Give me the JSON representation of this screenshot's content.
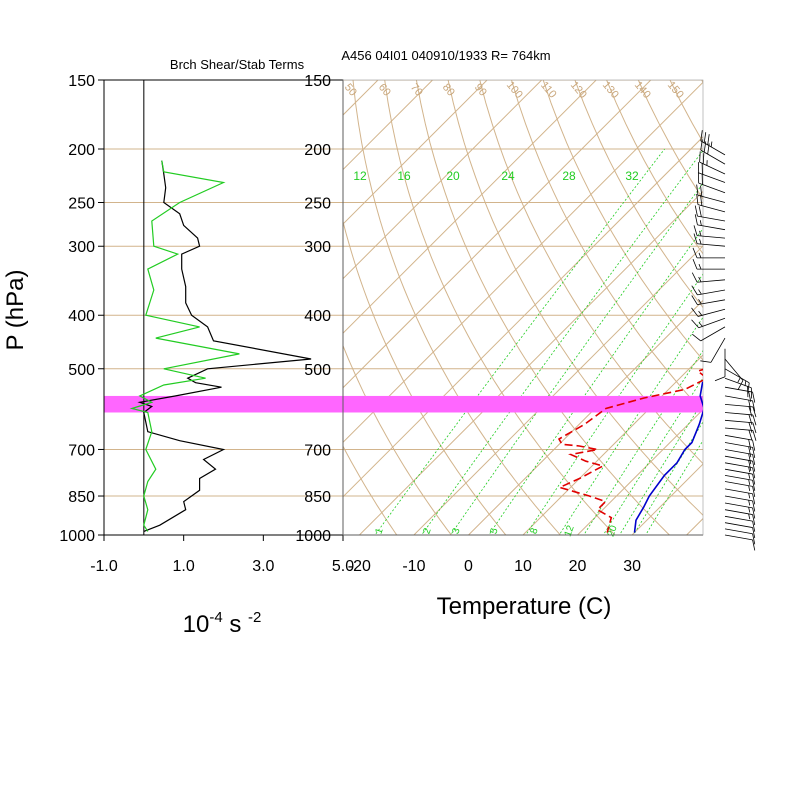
{
  "header": {
    "left_title": "Brch Shear/Stab Terms",
    "right_title": "A456 04I01 040910/1933 R= 764km"
  },
  "colors": {
    "grid": "#d2b48c",
    "brown_labels": "#c9a77c",
    "mixing_ratio": "#22cc22",
    "temperature": "#e00000",
    "dewpoint_line": "#0000cc",
    "highlight_band": "#ff66ff",
    "shear_black": "#000000",
    "stab_green": "#22cc22"
  },
  "chart_data": [
    {
      "type": "line",
      "name": "left-panel",
      "ylabel": "P (hPa)",
      "xlabel": "10-4 s -2",
      "xlabel_parts": {
        "base": "10",
        "exp1": "-4",
        "unit": " s ",
        "exp2": "-2"
      },
      "x_ticks": [
        "-1.0",
        "1.0",
        "3.0",
        "5.0"
      ],
      "x_tick_values": [
        -1,
        1,
        3,
        5
      ],
      "xlim": [
        -1,
        5
      ],
      "ylim": [
        1000,
        150
      ],
      "y_scale": "log",
      "y_ticks": [
        "150",
        "200",
        "250",
        "300",
        "400",
        "500",
        "700",
        "850",
        "1000"
      ],
      "y_tick_values": [
        150,
        200,
        250,
        300,
        400,
        500,
        700,
        850,
        1000
      ],
      "highlight_band": [
        560,
        600
      ],
      "series": [
        {
          "color": "#000000",
          "points": [
            [
              0.45,
              210
            ],
            [
              0.5,
              222
            ],
            [
              0.55,
              235
            ],
            [
              0.5,
              250
            ],
            [
              0.9,
              262
            ],
            [
              1.0,
              275
            ],
            [
              1.35,
              290
            ],
            [
              1.4,
              300
            ],
            [
              0.95,
              310
            ],
            [
              0.95,
              330
            ],
            [
              1.05,
              355
            ],
            [
              1.05,
              380
            ],
            [
              1.2,
              400
            ],
            [
              1.6,
              420
            ],
            [
              1.75,
              445
            ],
            [
              4.2,
              480
            ],
            [
              1.6,
              500
            ],
            [
              1.1,
              520
            ],
            [
              1.3,
              530
            ],
            [
              1.95,
              540
            ],
            [
              0.8,
              560
            ],
            [
              -0.1,
              575
            ],
            [
              0.2,
              585
            ],
            [
              0.0,
              600
            ],
            [
              0.1,
              650
            ],
            [
              0.9,
              675
            ],
            [
              2.0,
              700
            ],
            [
              1.5,
              730
            ],
            [
              1.8,
              760
            ],
            [
              1.4,
              790
            ],
            [
              1.4,
              830
            ],
            [
              1.0,
              870
            ],
            [
              1.05,
              900
            ],
            [
              0.4,
              960
            ],
            [
              0.0,
              985
            ]
          ]
        },
        {
          "color": "#22cc22",
          "points": [
            [
              0.45,
              210
            ],
            [
              0.5,
              220
            ],
            [
              2.0,
              230
            ],
            [
              0.9,
              250
            ],
            [
              0.2,
              270
            ],
            [
              0.25,
              300
            ],
            [
              0.85,
              310
            ],
            [
              0.1,
              330
            ],
            [
              0.25,
              360
            ],
            [
              0.05,
              400
            ],
            [
              1.4,
              420
            ],
            [
              0.3,
              440
            ],
            [
              2.4,
              470
            ],
            [
              0.5,
              500
            ],
            [
              1.55,
              520
            ],
            [
              0.5,
              535
            ],
            [
              -0.1,
              560
            ],
            [
              0.2,
              575
            ],
            [
              -0.3,
              590
            ],
            [
              0.1,
              600
            ],
            [
              0.2,
              650
            ],
            [
              0.05,
              700
            ],
            [
              0.3,
              760
            ],
            [
              0.1,
              800
            ],
            [
              0.0,
              850
            ],
            [
              0.1,
              900
            ],
            [
              0.0,
              960
            ],
            [
              0.1,
              985
            ]
          ]
        }
      ]
    },
    {
      "type": "line",
      "name": "skew-t",
      "xlabel": "Temperature (C)",
      "x_ticks": [
        "-20",
        "-10",
        "0",
        "10",
        "20",
        "30"
      ],
      "x_tick_values": [
        -20,
        -10,
        0,
        10,
        20,
        30
      ],
      "xlim": [
        -23,
        43
      ],
      "ylim": [
        1000,
        150
      ],
      "y_scale": "log",
      "y_ticks": [
        "150",
        "200",
        "250",
        "300",
        "400",
        "500",
        "700",
        "850",
        "1000"
      ],
      "y_tick_values": [
        150,
        200,
        250,
        300,
        400,
        500,
        700,
        850,
        1000
      ],
      "highlight_band": [
        560,
        600
      ],
      "mixing_ratio_labels_top": [
        "12",
        "16",
        "20",
        "24",
        "28",
        "32"
      ],
      "mixing_ratio_labels_bottom": [
        "1",
        "2",
        "3",
        "5",
        "8",
        "12",
        "20"
      ],
      "theta_labels_top": [
        "50",
        "60",
        "70",
        "80",
        "90",
        "100",
        "110",
        "120",
        "130",
        "140",
        "150"
      ],
      "series": [
        {
          "color": "#e00000",
          "style": "dashed",
          "points": [
            [
              -2.5,
              230
            ],
            [
              0,
              245
            ],
            [
              4,
              265
            ],
            [
              7,
              290
            ],
            [
              9,
              320
            ],
            [
              11,
              355
            ],
            [
              13,
              390
            ],
            [
              13.5,
              420
            ],
            [
              14,
              450
            ],
            [
              12,
              480
            ],
            [
              14,
              495
            ],
            [
              12,
              505
            ],
            [
              15,
              520
            ],
            [
              13,
              545
            ],
            [
              7,
              565
            ],
            [
              2,
              590
            ],
            [
              1,
              630
            ],
            [
              -1,
              670
            ],
            [
              0.5,
              685
            ],
            [
              4,
              690
            ],
            [
              8,
              700
            ],
            [
              4,
              715
            ],
            [
              8,
              735
            ],
            [
              12,
              750
            ],
            [
              10,
              790
            ],
            [
              8,
              820
            ],
            [
              15,
              850
            ],
            [
              19,
              870
            ],
            [
              19,
              900
            ],
            [
              23,
              930
            ],
            [
              24,
              960
            ],
            [
              25,
              990
            ]
          ]
        },
        {
          "color": "#0000cc",
          "style": "solid",
          "points": [
            [
              0,
              205
            ],
            [
              3,
              225
            ],
            [
              6,
              250
            ],
            [
              9,
              275
            ],
            [
              12,
              300
            ],
            [
              13,
              320
            ],
            [
              14,
              340
            ],
            [
              15,
              370
            ],
            [
              16,
              400
            ],
            [
              17,
              420
            ],
            [
              17,
              450
            ],
            [
              16.5,
              470
            ],
            [
              16,
              500
            ],
            [
              15,
              530
            ],
            [
              17,
              560
            ],
            [
              20,
              590
            ],
            [
              22,
              630
            ],
            [
              24,
              680
            ],
            [
              24,
              700
            ],
            [
              25,
              740
            ],
            [
              25,
              780
            ],
            [
              26,
              850
            ],
            [
              27,
              890
            ],
            [
              28,
              940
            ],
            [
              30,
              990
            ]
          ]
        }
      ],
      "wind_barbs": [
        {
          "p": 205,
          "dir": 300,
          "spd": 35
        },
        {
          "p": 213,
          "dir": 300,
          "spd": 30
        },
        {
          "p": 222,
          "dir": 295,
          "spd": 25
        },
        {
          "p": 230,
          "dir": 290,
          "spd": 20
        },
        {
          "p": 240,
          "dir": 290,
          "spd": 20
        },
        {
          "p": 250,
          "dir": 285,
          "spd": 20
        },
        {
          "p": 260,
          "dir": 285,
          "spd": 20
        },
        {
          "p": 270,
          "dir": 280,
          "spd": 20
        },
        {
          "p": 280,
          "dir": 280,
          "spd": 15
        },
        {
          "p": 290,
          "dir": 275,
          "spd": 15
        },
        {
          "p": 300,
          "dir": 275,
          "spd": 15
        },
        {
          "p": 315,
          "dir": 270,
          "spd": 15
        },
        {
          "p": 330,
          "dir": 270,
          "spd": 15
        },
        {
          "p": 345,
          "dir": 265,
          "spd": 15
        },
        {
          "p": 360,
          "dir": 260,
          "spd": 15
        },
        {
          "p": 375,
          "dir": 260,
          "spd": 15
        },
        {
          "p": 390,
          "dir": 255,
          "spd": 15
        },
        {
          "p": 405,
          "dir": 250,
          "spd": 15
        },
        {
          "p": 420,
          "dir": 240,
          "spd": 10
        },
        {
          "p": 440,
          "dir": 210,
          "spd": 10
        },
        {
          "p": 460,
          "dir": 180,
          "spd": 10
        },
        {
          "p": 480,
          "dir": 140,
          "spd": 15
        },
        {
          "p": 500,
          "dir": 120,
          "spd": 15
        },
        {
          "p": 520,
          "dir": 110,
          "spd": 20
        },
        {
          "p": 540,
          "dir": 100,
          "spd": 20
        },
        {
          "p": 560,
          "dir": 100,
          "spd": 20
        },
        {
          "p": 580,
          "dir": 95,
          "spd": 20
        },
        {
          "p": 600,
          "dir": 95,
          "spd": 20
        },
        {
          "p": 620,
          "dir": 95,
          "spd": 20
        },
        {
          "p": 640,
          "dir": 95,
          "spd": 20
        },
        {
          "p": 660,
          "dir": 100,
          "spd": 20
        },
        {
          "p": 680,
          "dir": 100,
          "spd": 20
        },
        {
          "p": 700,
          "dir": 100,
          "spd": 20
        },
        {
          "p": 720,
          "dir": 100,
          "spd": 20
        },
        {
          "p": 740,
          "dir": 100,
          "spd": 15
        },
        {
          "p": 760,
          "dir": 100,
          "spd": 15
        },
        {
          "p": 780,
          "dir": 100,
          "spd": 15
        },
        {
          "p": 800,
          "dir": 100,
          "spd": 15
        },
        {
          "p": 825,
          "dir": 100,
          "spd": 15
        },
        {
          "p": 850,
          "dir": 100,
          "spd": 15
        },
        {
          "p": 875,
          "dir": 100,
          "spd": 15
        },
        {
          "p": 900,
          "dir": 100,
          "spd": 15
        },
        {
          "p": 925,
          "dir": 100,
          "spd": 10
        },
        {
          "p": 950,
          "dir": 100,
          "spd": 10
        },
        {
          "p": 975,
          "dir": 100,
          "spd": 10
        },
        {
          "p": 1000,
          "dir": 100,
          "spd": 10
        }
      ]
    }
  ]
}
